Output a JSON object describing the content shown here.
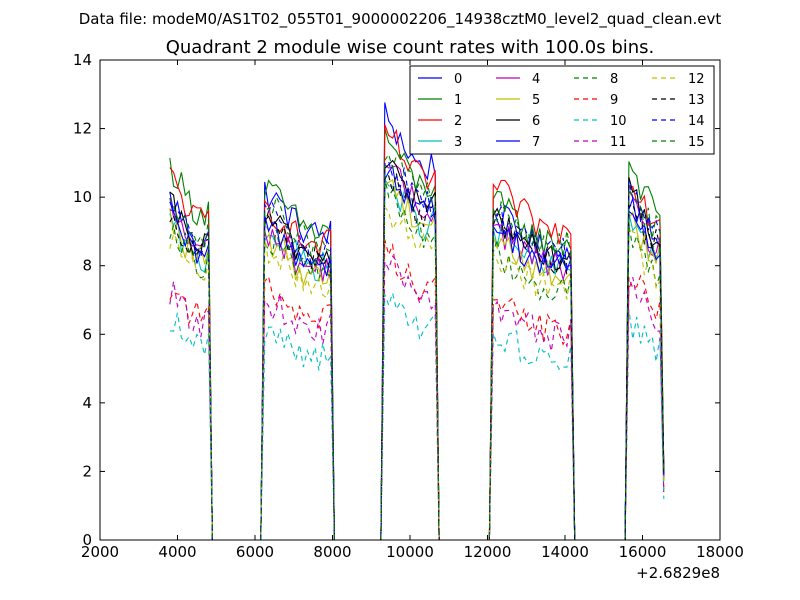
{
  "suptitle": "Data file: modeM0/AS1T02_055T01_9000002206_14938cztM0_level2_quad_clean.evt",
  "chart_data": {
    "type": "line",
    "title": "Quadrant 2 module wise count rates with 100.0s bins.",
    "xlabel": "",
    "ylabel": "",
    "x_offset_label": "+2.6829e8",
    "xlim": [
      2000,
      18000
    ],
    "ylim": [
      0,
      14
    ],
    "xticks": [
      "2000",
      "4000",
      "6000",
      "8000",
      "10000",
      "12000",
      "14000",
      "16000",
      "18000"
    ],
    "yticks": [
      "0",
      "2",
      "4",
      "6",
      "8",
      "10",
      "12",
      "14"
    ],
    "legend_position": "top-right",
    "segments": [
      {
        "start": 3800,
        "end": 4800
      },
      {
        "start": 6250,
        "end": 7950
      },
      {
        "start": 9350,
        "end": 10650
      },
      {
        "start": 12150,
        "end": 14150
      },
      {
        "start": 15650,
        "end": 16550
      }
    ],
    "series": [
      {
        "name": "0",
        "color": "#0000ff",
        "dash": "solid",
        "levels": [
          9.4,
          9.6,
          11.7,
          9.0,
          9.5
        ]
      },
      {
        "name": "1",
        "color": "#008000",
        "dash": "solid",
        "levels": [
          10.3,
          9.7,
          11.1,
          9.3,
          10.4
        ]
      },
      {
        "name": "2",
        "color": "#ff0000",
        "dash": "solid",
        "levels": [
          10.0,
          9.2,
          11.3,
          9.7,
          10.1
        ]
      },
      {
        "name": "3",
        "color": "#00bfbf",
        "dash": "solid",
        "levels": [
          8.7,
          8.6,
          9.9,
          8.5,
          9.0
        ]
      },
      {
        "name": "4",
        "color": "#bf00bf",
        "dash": "solid",
        "levels": [
          9.1,
          8.5,
          10.4,
          8.6,
          9.2
        ]
      },
      {
        "name": "5",
        "color": "#bfbf00",
        "dash": "solid",
        "levels": [
          8.8,
          8.3,
          10.0,
          8.3,
          8.9
        ]
      },
      {
        "name": "6",
        "color": "#000000",
        "dash": "solid",
        "levels": [
          9.2,
          8.9,
          10.5,
          8.9,
          9.6
        ]
      },
      {
        "name": "7",
        "color": "#0000ff",
        "dash": "solid",
        "levels": [
          8.9,
          8.7,
          10.3,
          8.6,
          9.1
        ]
      },
      {
        "name": "8",
        "color": "#008000",
        "dash": "dashed",
        "levels": [
          8.7,
          8.4,
          9.6,
          7.9,
          8.3
        ]
      },
      {
        "name": "9",
        "color": "#ff0000",
        "dash": "dashed",
        "levels": [
          7.0,
          7.0,
          8.0,
          6.6,
          7.3
        ]
      },
      {
        "name": "10",
        "color": "#00bfbf",
        "dash": "dashed",
        "levels": [
          6.1,
          5.8,
          6.6,
          5.7,
          6.0
        ]
      },
      {
        "name": "11",
        "color": "#bf00bf",
        "dash": "dashed",
        "levels": [
          6.8,
          6.6,
          7.6,
          6.4,
          7.0
        ]
      },
      {
        "name": "12",
        "color": "#bfbf00",
        "dash": "dashed",
        "levels": [
          8.3,
          8.0,
          9.2,
          7.9,
          8.4
        ]
      },
      {
        "name": "13",
        "color": "#000000",
        "dash": "dashed",
        "levels": [
          9.0,
          8.8,
          10.2,
          8.7,
          9.3
        ]
      },
      {
        "name": "14",
        "color": "#0000ff",
        "dash": "dashed",
        "levels": [
          9.3,
          9.0,
          10.6,
          9.0,
          9.6
        ]
      },
      {
        "name": "15",
        "color": "#008000",
        "dash": "dashed",
        "levels": [
          9.6,
          9.3,
          10.8,
          9.2,
          9.8
        ]
      }
    ]
  }
}
